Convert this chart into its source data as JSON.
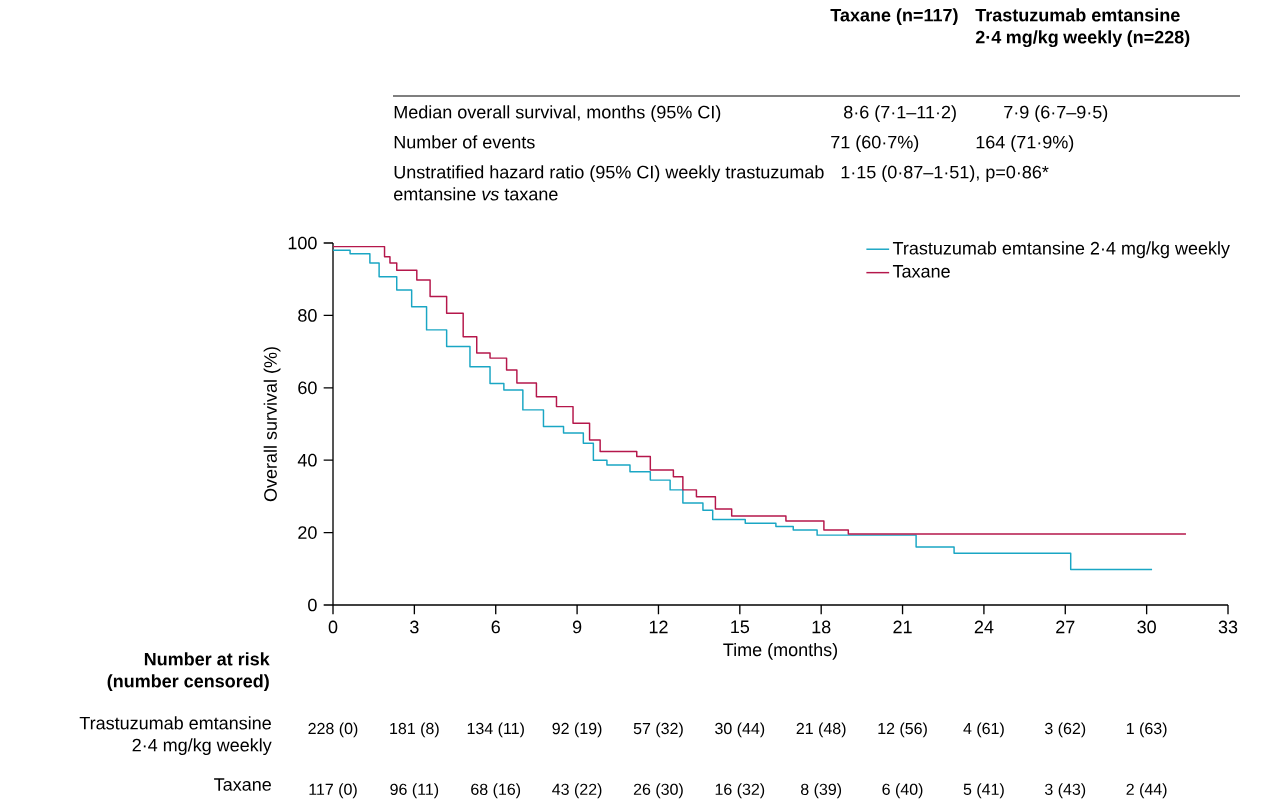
{
  "chart_data": {
    "type": "step",
    "xlabel": "Time (months)",
    "ylabel": "Overall survival (%)",
    "xlim": [
      0,
      33
    ],
    "xticks": [
      0,
      3,
      6,
      9,
      12,
      15,
      18,
      21,
      24,
      27,
      30,
      33
    ],
    "ylim": [
      0,
      100
    ],
    "yticks": [
      0,
      20,
      40,
      60,
      80,
      100
    ],
    "grid": false,
    "legend": "top right",
    "marker": "none",
    "line_style": "solid",
    "series": [
      {
        "name": "Trastuzumab emtansine 2·4 mg/kg weekly",
        "color": "#1aa6c4",
        "x": [
          0,
          0.63,
          1.36,
          1.7,
          2.35,
          2.9,
          3.45,
          4.19,
          5.05,
          5.79,
          6.3,
          7.0,
          7.76,
          8.5,
          9.23,
          9.6,
          10.1,
          10.95,
          11.7,
          12.43,
          12.9,
          13.64,
          14.0,
          15.2,
          16.33,
          16.97,
          17.85,
          21.5,
          22.9,
          27.2,
          30.2
        ],
        "values": [
          98,
          97,
          94.5,
          90.7,
          87,
          82.4,
          76,
          71.4,
          65.8,
          61.2,
          59.4,
          53.9,
          49.3,
          47.5,
          44.7,
          40,
          38.7,
          36.8,
          34.5,
          31.8,
          28.2,
          26.2,
          23.6,
          22.6,
          21.7,
          20.7,
          19.3,
          16,
          14.3,
          9.8,
          9.8
        ]
      },
      {
        "name": "Taxane",
        "color": "#b5174b",
        "x": [
          0,
          1.9,
          2.1,
          2.35,
          3.09,
          3.58,
          4.19,
          4.8,
          5.3,
          5.79,
          6.4,
          6.78,
          7.5,
          8.24,
          8.85,
          9.46,
          9.85,
          11.2,
          11.7,
          12.55,
          12.9,
          13.4,
          14.1,
          14.7,
          16.7,
          18.1,
          19.0,
          31.45
        ],
        "values": [
          99,
          96.2,
          94.5,
          92.5,
          89.8,
          85.2,
          80.6,
          74.1,
          69.6,
          68.2,
          64.9,
          61.3,
          57.5,
          54.8,
          50.2,
          45.6,
          42.4,
          41,
          37.3,
          35.4,
          31.8,
          29.9,
          26.5,
          24.6,
          23.2,
          20.7,
          19.6,
          19.6
        ]
      }
    ],
    "annotations": [
      "Taxane (n=117)",
      "Trastuzumab emtansine 2·4 mg/kg weekly (n=228)",
      "Median overall survival, months (95% CI)",
      "8·6 (7·1–11·2)",
      "7·9 (6·7–9·5)",
      "Number of events",
      "71 (60·7%)",
      "164 (71·9%)",
      "Unstratified hazard ratio (95% CI) weekly trastuzumab emtansine *vs* taxane",
      "1·15 (0·87–1·51), p=0·86*",
      "Number at risk (number censored)",
      "Trastuzumab emtansine 2·4 mg/kg weekly",
      "Taxane",
      "228 (0)",
      "181 (8)",
      "134 (11)",
      "92 (19)",
      "57 (32)",
      "30 (44)",
      "21 (48)",
      "12 (56)",
      "4 (61)",
      "3 (62)",
      "1 (63)",
      "117 (0)",
      "96 (11)",
      "68 (16)",
      "43 (22)",
      "26 (30)",
      "16 (32)",
      "8 (39)",
      "6 (40)",
      "5 (41)",
      "3 (43)",
      "2 (44)"
    ]
  }
}
